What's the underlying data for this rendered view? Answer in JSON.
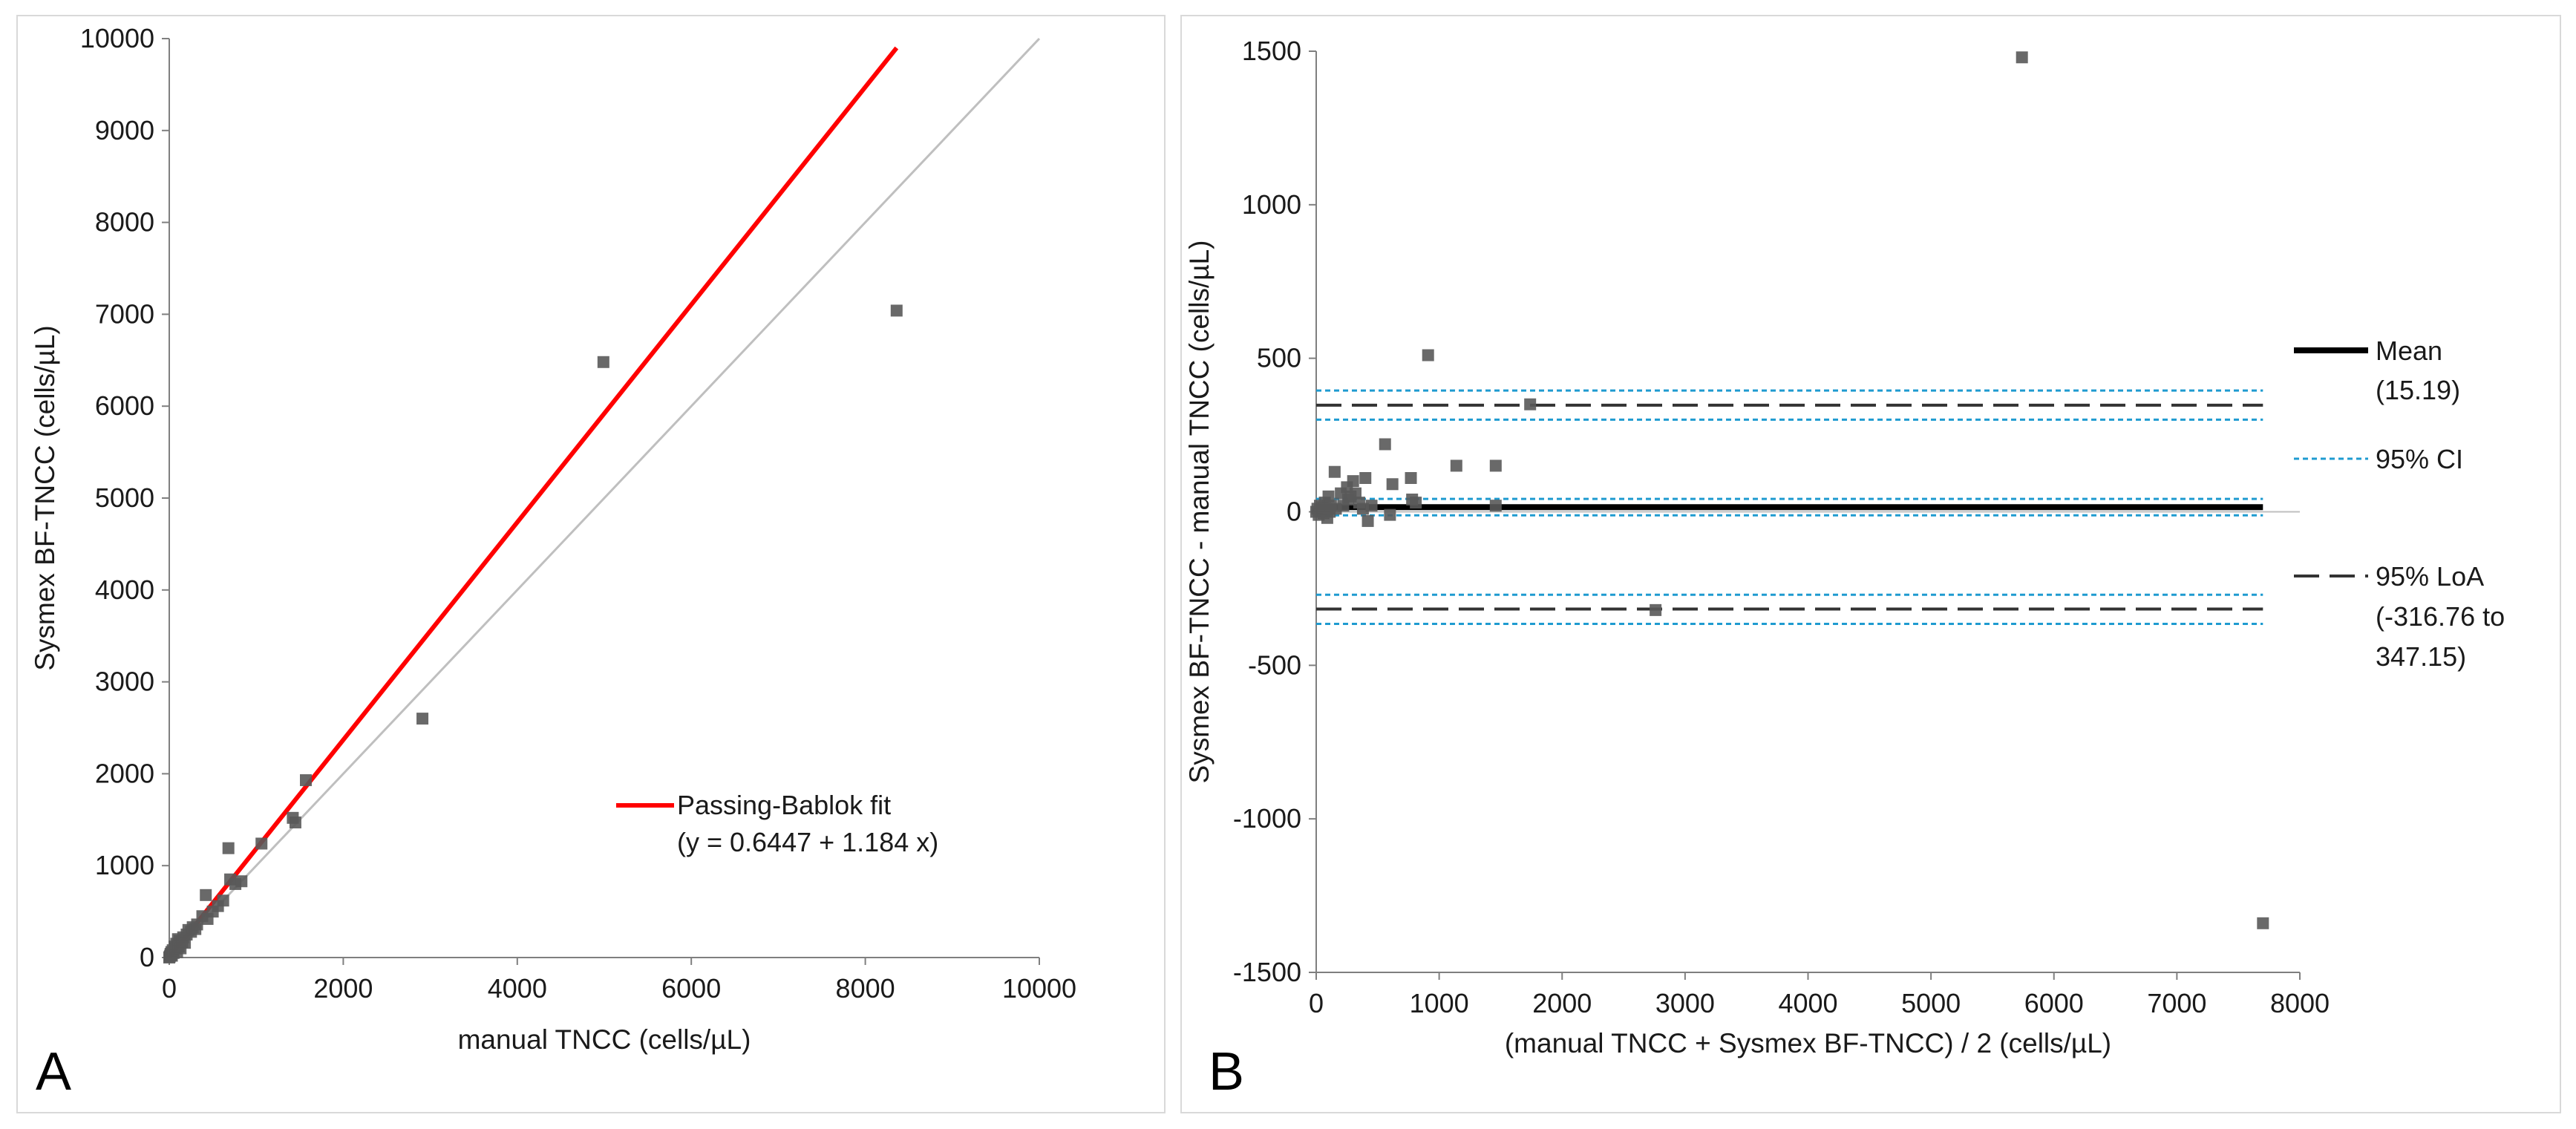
{
  "chart_data": [
    {
      "type": "scatter",
      "panel_label": "A",
      "xlabel": "manual TNCC (cells/µL)",
      "ylabel": "Sysmex BF-TNCC (cells/µL)",
      "xlim": [
        0,
        10000
      ],
      "ylim": [
        0,
        10000
      ],
      "x_ticks": [
        "0",
        "2000",
        "4000",
        "6000",
        "8000",
        "10000"
      ],
      "y_ticks": [
        "0",
        "1000",
        "2000",
        "3000",
        "4000",
        "5000",
        "6000",
        "7000",
        "8000",
        "9000",
        "10000"
      ],
      "points": [
        [
          0,
          0
        ],
        [
          5,
          10
        ],
        [
          10,
          20
        ],
        [
          15,
          40
        ],
        [
          20,
          30
        ],
        [
          25,
          60
        ],
        [
          30,
          20
        ],
        [
          40,
          80
        ],
        [
          50,
          50
        ],
        [
          60,
          120
        ],
        [
          70,
          100
        ],
        [
          80,
          150
        ],
        [
          90,
          60
        ],
        [
          100,
          200
        ],
        [
          110,
          120
        ],
        [
          120,
          180
        ],
        [
          130,
          100
        ],
        [
          150,
          170
        ],
        [
          160,
          220
        ],
        [
          180,
          160
        ],
        [
          200,
          250
        ],
        [
          220,
          300
        ],
        [
          250,
          280
        ],
        [
          270,
          330
        ],
        [
          300,
          310
        ],
        [
          320,
          360
        ],
        [
          380,
          450
        ],
        [
          420,
          680
        ],
        [
          440,
          420
        ],
        [
          500,
          500
        ],
        [
          560,
          560
        ],
        [
          620,
          620
        ],
        [
          680,
          1190
        ],
        [
          700,
          850
        ],
        [
          760,
          800
        ],
        [
          830,
          830
        ],
        [
          1060,
          1240
        ],
        [
          1420,
          1520
        ],
        [
          1450,
          1470
        ],
        [
          1570,
          1930
        ],
        [
          2910,
          2600
        ],
        [
          4990,
          6480
        ],
        [
          8360,
          7040
        ]
      ],
      "fit": {
        "label": "Passing-Bablok fit",
        "equation": "(y = 0.6447 + 1.184 x)",
        "intercept": 0.6447,
        "slope": 1.184,
        "x_end": 8360,
        "color": "#ff0000"
      },
      "identity_line": {
        "from": [
          0,
          0
        ],
        "to": [
          10000,
          10000
        ],
        "color": "#bfbfbf"
      },
      "marker_color": "#595959"
    },
    {
      "type": "scatter",
      "panel_label": "B",
      "xlabel": "(manual TNCC + Sysmex BF-TNCC) / 2 (cells/µL)",
      "ylabel": "Sysmex BF-TNCC - manual TNCC (cells/µL)",
      "xlim": [
        0,
        8000
      ],
      "ylim": [
        -1500,
        1500
      ],
      "x_ticks": [
        "0",
        "1000",
        "2000",
        "3000",
        "4000",
        "5000",
        "6000",
        "7000",
        "8000"
      ],
      "y_ticks": [
        "-1500",
        "-1000",
        "-500",
        "0",
        "500",
        "1000",
        "1500"
      ],
      "points": [
        [
          0,
          0
        ],
        [
          10,
          10
        ],
        [
          20,
          -10
        ],
        [
          30,
          20
        ],
        [
          40,
          5
        ],
        [
          50,
          15
        ],
        [
          60,
          -5
        ],
        [
          70,
          30
        ],
        [
          80,
          10
        ],
        [
          90,
          -20
        ],
        [
          100,
          50
        ],
        [
          110,
          0
        ],
        [
          120,
          20
        ],
        [
          150,
          130
        ],
        [
          160,
          10
        ],
        [
          200,
          60
        ],
        [
          220,
          20
        ],
        [
          250,
          80
        ],
        [
          260,
          40
        ],
        [
          280,
          50
        ],
        [
          300,
          100
        ],
        [
          320,
          60
        ],
        [
          350,
          30
        ],
        [
          380,
          10
        ],
        [
          400,
          110
        ],
        [
          420,
          -30
        ],
        [
          450,
          20
        ],
        [
          560,
          220
        ],
        [
          600,
          -10
        ],
        [
          620,
          90
        ],
        [
          770,
          110
        ],
        [
          780,
          40
        ],
        [
          810,
          30
        ],
        [
          910,
          510
        ],
        [
          1140,
          150
        ],
        [
          1460,
          150
        ],
        [
          1460,
          20
        ],
        [
          1740,
          350
        ],
        [
          2760,
          -320
        ],
        [
          5740,
          1480
        ],
        [
          7700,
          -1340
        ]
      ],
      "reference_lines": {
        "mean": {
          "value": 15.19,
          "ci": [
            -11.5,
            41.9
          ]
        },
        "upper_loa": {
          "value": 347.15,
          "ci": [
            300,
            395
          ]
        },
        "lower_loa": {
          "value": -316.76,
          "ci": [
            -365,
            -270
          ]
        },
        "zero": 0,
        "x_end": 7700
      },
      "legend": {
        "mean_label": "Mean",
        "mean_value": "(15.19)",
        "ci_label": "95% CI",
        "loa_label": "95% LoA",
        "loa_value_1": "(-316.76 to",
        "loa_value_2": "347.15)"
      },
      "colors": {
        "mean": "#000000",
        "ci": "#1f9bd0",
        "loa": "#333333",
        "zero": "#bfbfbf"
      },
      "marker_color": "#595959"
    }
  ]
}
